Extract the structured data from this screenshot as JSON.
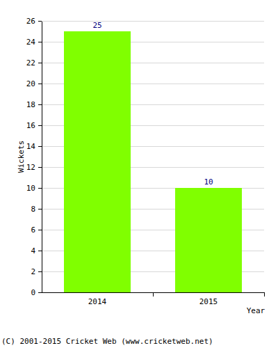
{
  "chart_data": {
    "type": "bar",
    "categories": [
      "2014",
      "2015"
    ],
    "values": [
      25,
      10
    ],
    "color": "#80ff00",
    "xlabel": "Year",
    "ylabel": "Wickets",
    "ylim": [
      0,
      26
    ],
    "yticks": [
      0,
      2,
      4,
      6,
      8,
      10,
      12,
      14,
      16,
      18,
      20,
      22,
      24,
      26
    ],
    "grid": true,
    "data_labels": true,
    "annotations": [
      "(C) 2001-2015 Cricket Web (www.cricketweb.net)"
    ]
  }
}
